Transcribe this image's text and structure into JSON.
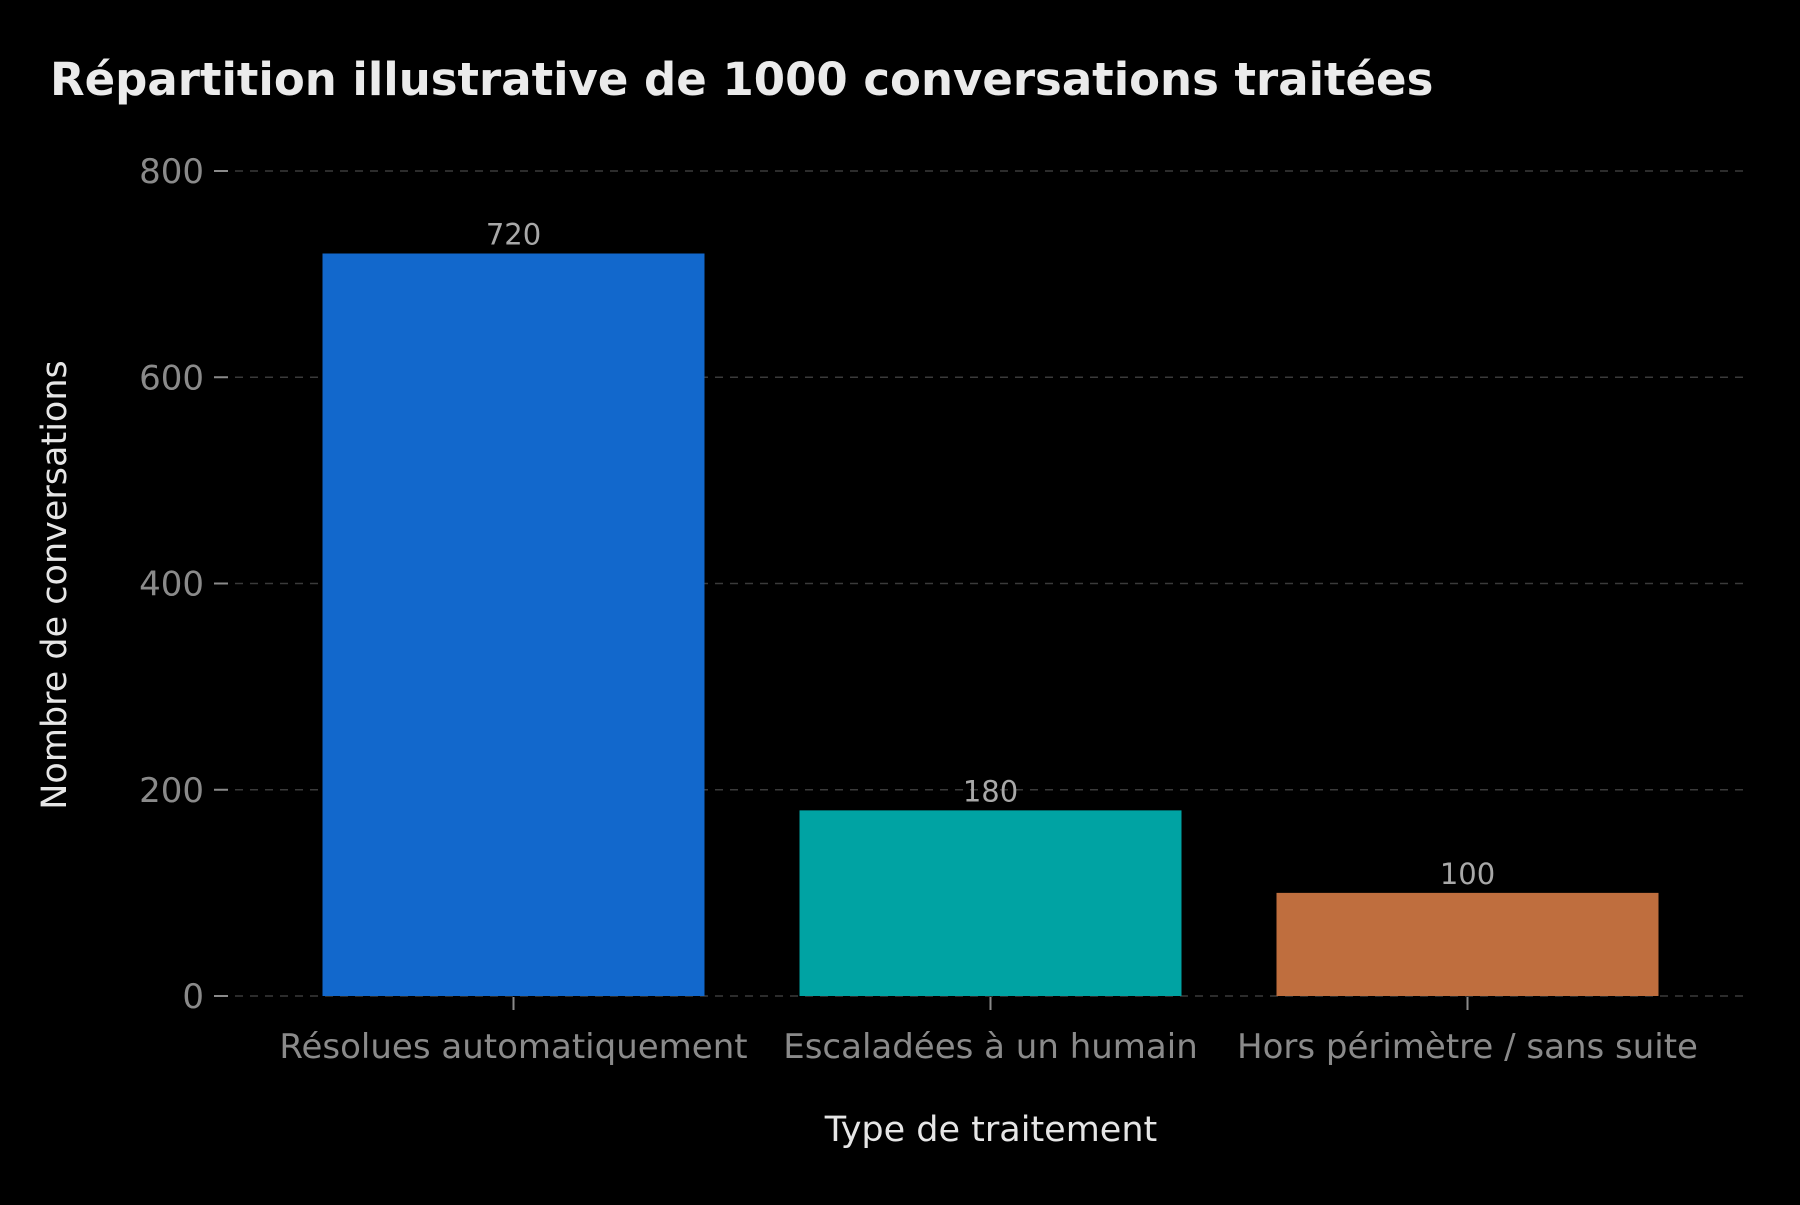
{
  "chart_data": {
    "type": "bar",
    "title": "Répartition illustrative de 1000 conversations traitées",
    "xlabel": "Type de traitement",
    "ylabel": "Nombre de conversations",
    "categories": [
      "Résolues automatiquement",
      "Escaladées à un humain",
      "Hors périmètre / sans suite"
    ],
    "values": [
      720,
      180,
      100
    ],
    "value_labels": [
      "720",
      "180",
      "100"
    ],
    "colors": [
      "#1268cc",
      "#00a3a3",
      "#bf6e3e"
    ],
    "ylim": [
      0,
      800
    ],
    "yticks": [
      0,
      200,
      400,
      600,
      800
    ],
    "ytick_labels": [
      "0",
      "200",
      "400",
      "600",
      "800"
    ],
    "grid": "horizontal dashed",
    "background": "#000000"
  }
}
